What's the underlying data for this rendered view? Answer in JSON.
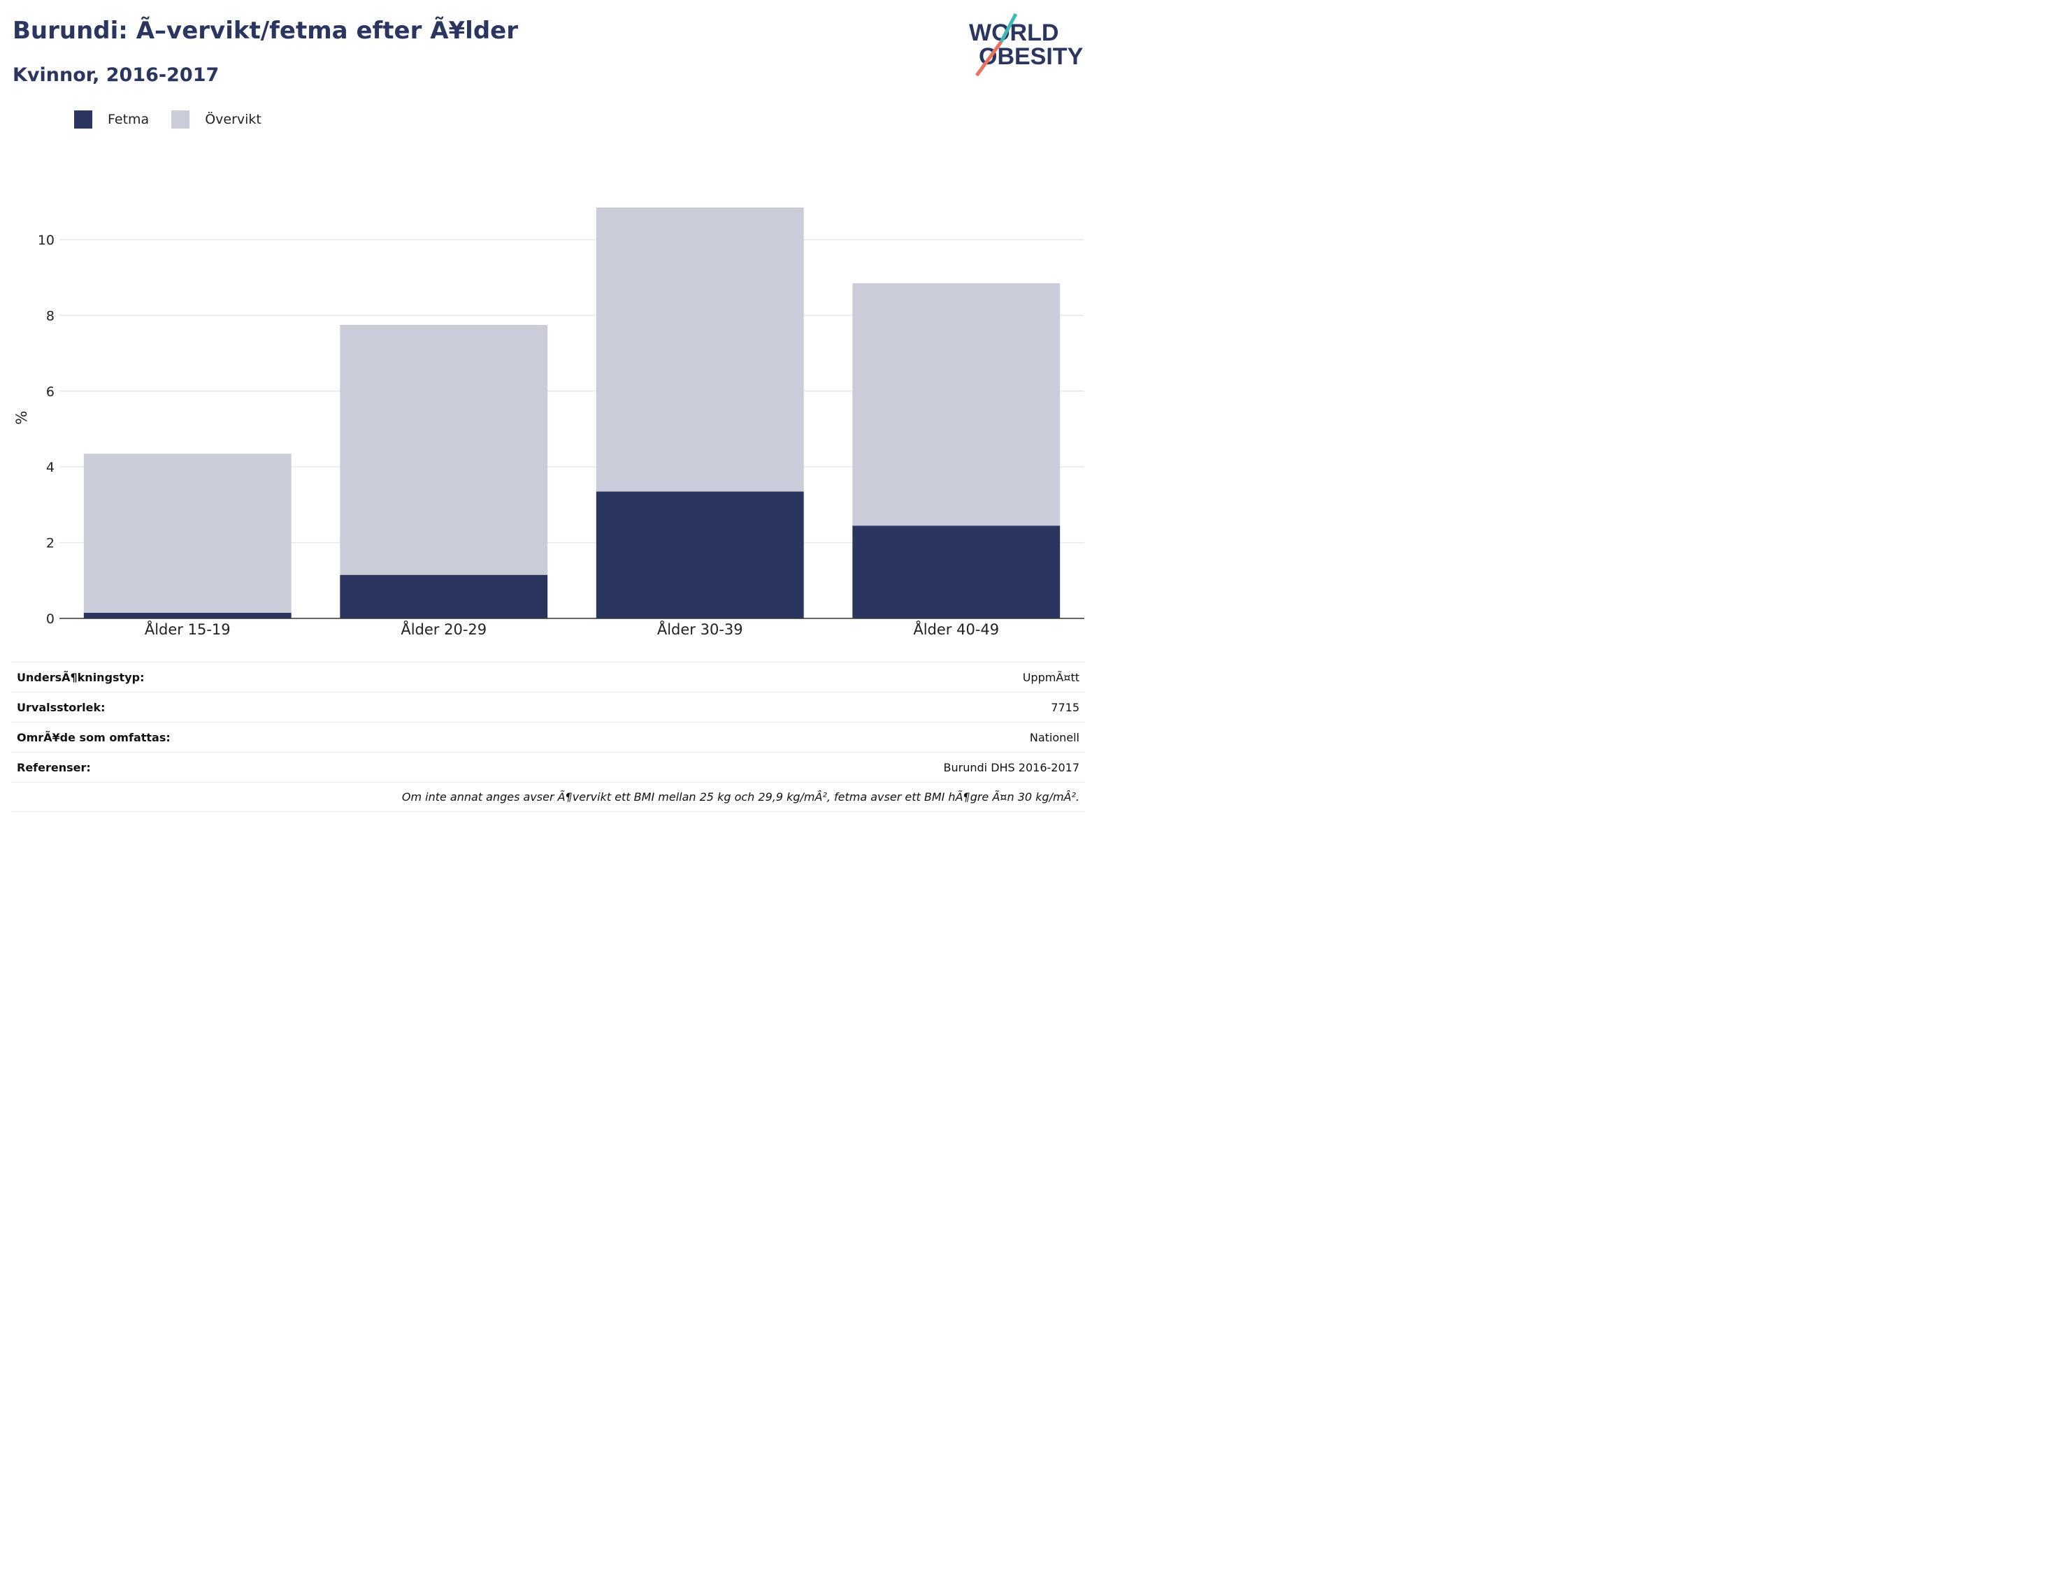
{
  "header": {
    "title": "Burundi: Ã–vervikt/fetma efter Ã¥lder",
    "subtitle": "Kvinnor, 2016-2017"
  },
  "logo": {
    "line1": "WORLD",
    "line2": "OBESITY"
  },
  "colors": {
    "fetma": "#2a365f",
    "overvikt": "#cacdd9",
    "text": "#2a365f",
    "logo_teal": "#3fb8b8",
    "logo_coral": "#e8735f"
  },
  "chart_data": {
    "type": "bar",
    "stacked": true,
    "categories": [
      "Ålder 15-19",
      "Ålder 20-29",
      "Ålder 30-39",
      "Ålder 40-49"
    ],
    "series": [
      {
        "name": "Fetma",
        "values": [
          0.15,
          1.15,
          3.35,
          2.45
        ]
      },
      {
        "name": "Övervikt",
        "values": [
          4.2,
          6.6,
          7.5,
          6.4
        ]
      }
    ],
    "ylabel": "%",
    "ylim": [
      0,
      11
    ],
    "yticks": [
      0,
      2,
      4,
      6,
      8,
      10
    ],
    "grid": true,
    "legend": "top-left"
  },
  "info": {
    "rows": [
      {
        "label": "UndersÃ¶kningstyp:",
        "value": "UppmÃ¤tt"
      },
      {
        "label": "Urvalsstorlek:",
        "value": "7715"
      },
      {
        "label": "OmrÃ¥de som omfattas:",
        "value": "Nationell"
      },
      {
        "label": "Referenser:",
        "value": "Burundi DHS 2016-2017"
      }
    ],
    "note": "Om inte annat anges avser Ã¶vervikt ett BMI mellan 25 kg och 29,9 kg/mÂ², fetma avser ett BMI hÃ¶gre Ã¤n 30 kg/mÂ²."
  }
}
